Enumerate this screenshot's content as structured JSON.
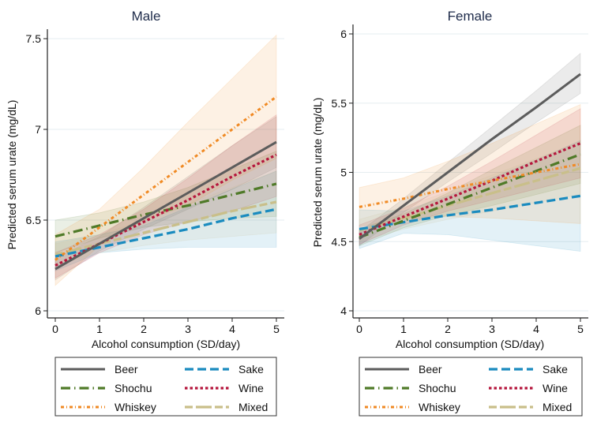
{
  "chart_data": [
    {
      "type": "line",
      "title": "Male",
      "xlabel": "Alcohol consumption (SD/day)",
      "ylabel": "Predicted serum urate (mg/dL)",
      "xlim": [
        0,
        5
      ],
      "ylim": [
        6,
        7.5
      ],
      "xticks": [
        "0",
        "1",
        "2",
        "3",
        "4",
        "5"
      ],
      "yticks": [
        "6",
        "6.5",
        "7",
        "7.5"
      ],
      "grid": true,
      "legend_position": "bottom",
      "x": [
        0,
        1,
        2,
        3,
        4,
        5
      ],
      "series": [
        {
          "name": "Beer",
          "color": "#5c5c5c",
          "style": "solid",
          "values": [
            6.23,
            6.37,
            6.51,
            6.65,
            6.79,
            6.93
          ],
          "ci_low": [
            6.17,
            6.33,
            6.45,
            6.56,
            6.67,
            6.79
          ],
          "ci_high": [
            6.29,
            6.41,
            6.57,
            6.74,
            6.91,
            7.07
          ]
        },
        {
          "name": "Sake",
          "color": "#1a8bbf",
          "style": "dash",
          "values": [
            6.3,
            6.35,
            6.4,
            6.45,
            6.51,
            6.56
          ],
          "ci_low": [
            6.22,
            6.32,
            6.34,
            6.35,
            6.35,
            6.35
          ],
          "ci_high": [
            6.38,
            6.42,
            6.47,
            6.57,
            6.67,
            6.77
          ]
        },
        {
          "name": "Shochu",
          "color": "#4f7a28",
          "style": "dashdot",
          "values": [
            6.41,
            6.47,
            6.53,
            6.58,
            6.64,
            6.7
          ],
          "ci_low": [
            6.32,
            6.4,
            6.46,
            6.49,
            6.51,
            6.52
          ],
          "ci_high": [
            6.5,
            6.54,
            6.6,
            6.68,
            6.78,
            6.88
          ]
        },
        {
          "name": "Wine",
          "color": "#b5163c",
          "style": "dot",
          "values": [
            6.25,
            6.37,
            6.49,
            6.61,
            6.74,
            6.86
          ],
          "ci_low": [
            6.18,
            6.32,
            6.42,
            6.49,
            6.55,
            6.63
          ],
          "ci_high": [
            6.32,
            6.42,
            6.56,
            6.73,
            6.91,
            7.08
          ]
        },
        {
          "name": "Whiskey",
          "color": "#f08a24",
          "style": "dashdotdot",
          "values": [
            6.28,
            6.46,
            6.64,
            6.82,
            7.0,
            7.18
          ],
          "ci_low": [
            6.14,
            6.36,
            6.5,
            6.58,
            6.72,
            6.84
          ],
          "ci_high": [
            6.42,
            6.56,
            6.79,
            7.04,
            7.28,
            7.52
          ]
        },
        {
          "name": "Mixed",
          "color": "#c9bf8a",
          "style": "longdash",
          "values": [
            6.31,
            6.37,
            6.43,
            6.49,
            6.55,
            6.6
          ],
          "ci_low": [
            6.25,
            6.32,
            6.36,
            6.39,
            6.41,
            6.43
          ],
          "ci_high": [
            6.37,
            6.42,
            6.5,
            6.59,
            6.68,
            6.77
          ]
        }
      ]
    },
    {
      "type": "line",
      "title": "Female",
      "xlabel": "Alcohol consumption (SD/day)",
      "ylabel": "Predicted serum urate (mg/dL)",
      "xlim": [
        0,
        5
      ],
      "ylim": [
        4,
        6
      ],
      "xticks": [
        "0",
        "1",
        "2",
        "3",
        "4",
        "5"
      ],
      "yticks": [
        "4",
        "4.5",
        "5",
        "5.5",
        "6"
      ],
      "grid": true,
      "legend_position": "bottom",
      "x": [
        0,
        1,
        2,
        3,
        4,
        5
      ],
      "series": [
        {
          "name": "Beer",
          "color": "#5c5c5c",
          "style": "solid",
          "values": [
            4.52,
            4.76,
            5.0,
            5.24,
            5.47,
            5.71
          ],
          "ci_low": [
            4.47,
            4.71,
            4.93,
            5.14,
            5.36,
            5.57
          ],
          "ci_high": [
            4.57,
            4.81,
            5.07,
            5.33,
            5.59,
            5.86
          ]
        },
        {
          "name": "Sake",
          "color": "#1a8bbf",
          "style": "dash",
          "values": [
            4.59,
            4.64,
            4.69,
            4.73,
            4.78,
            4.83
          ],
          "ci_low": [
            4.45,
            4.56,
            4.55,
            4.51,
            4.47,
            4.43
          ],
          "ci_high": [
            4.73,
            4.72,
            4.83,
            4.96,
            5.09,
            5.23
          ]
        },
        {
          "name": "Shochu",
          "color": "#4f7a28",
          "style": "dashdot",
          "values": [
            4.53,
            4.65,
            4.77,
            4.89,
            5.01,
            5.13
          ],
          "ci_low": [
            4.47,
            4.6,
            4.69,
            4.76,
            4.84,
            4.92
          ],
          "ci_high": [
            4.59,
            4.7,
            4.85,
            5.02,
            5.18,
            5.34
          ]
        },
        {
          "name": "Wine",
          "color": "#b5163c",
          "style": "dot",
          "values": [
            4.55,
            4.68,
            4.81,
            4.94,
            5.08,
            5.21
          ],
          "ci_low": [
            4.48,
            4.62,
            4.72,
            4.8,
            4.88,
            4.96
          ],
          "ci_high": [
            4.62,
            4.74,
            4.9,
            5.08,
            5.27,
            5.46
          ]
        },
        {
          "name": "Whiskey",
          "color": "#f08a24",
          "style": "dashdotdot",
          "values": [
            4.75,
            4.81,
            4.88,
            4.94,
            5.0,
            5.06
          ],
          "ci_low": [
            4.61,
            4.66,
            4.68,
            4.67,
            4.65,
            4.63
          ],
          "ci_high": [
            4.89,
            4.96,
            5.08,
            5.21,
            5.35,
            5.49
          ]
        },
        {
          "name": "Mixed",
          "color": "#c9bf8a",
          "style": "longdash",
          "values": [
            4.58,
            4.67,
            4.76,
            4.85,
            4.94,
            5.03
          ],
          "ci_low": [
            4.5,
            4.59,
            4.66,
            4.72,
            4.78,
            4.84
          ],
          "ci_high": [
            4.66,
            4.75,
            4.86,
            4.98,
            5.1,
            5.22
          ]
        }
      ]
    }
  ]
}
